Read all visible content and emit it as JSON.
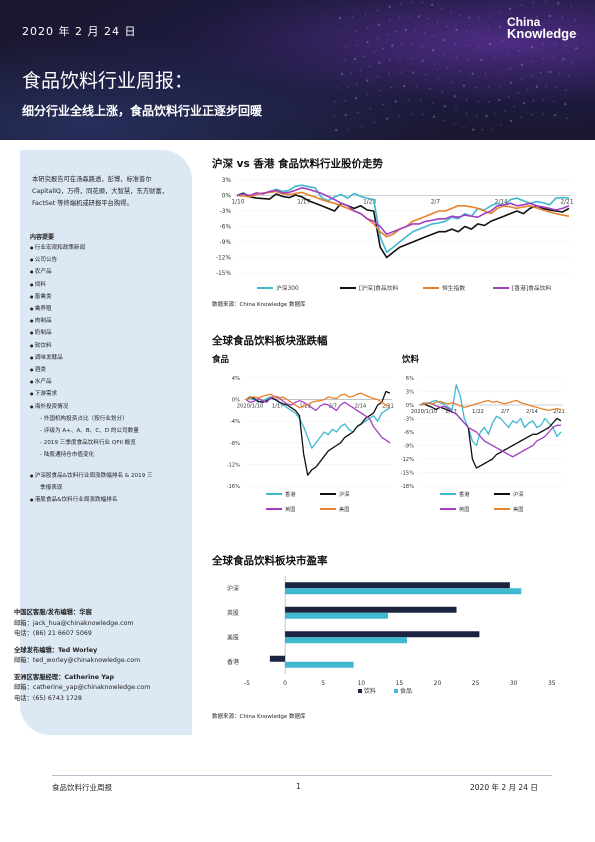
{
  "header": {
    "date": "2020 年 2 月 24 日",
    "title": "食品饮料行业周报：",
    "subtitle": "细分行业全线上涨，食品饮料行业正逐步回暖",
    "logo_line1": "China",
    "logo_line2": "Knowledge"
  },
  "sidebar": {
    "intro": "本研究报告可在汤森路透，彭博，标准普尔 CapitalIQ，万得，同花顺，大智慧，东方财富，FactSet 等终端机或研报平台购得。",
    "contents_title": "内容提要",
    "contents": [
      {
        "type": "bullet",
        "text": "行业宏观和政策新闻"
      },
      {
        "type": "bullet",
        "text": "公司公告"
      },
      {
        "type": "bullet",
        "text": "农产品"
      },
      {
        "type": "bullet",
        "text": "饲料"
      },
      {
        "type": "bullet",
        "text": "畜禽类"
      },
      {
        "type": "bullet",
        "text": "禽养殖"
      },
      {
        "type": "bullet",
        "text": "肉制品"
      },
      {
        "type": "bullet",
        "text": "奶制品"
      },
      {
        "type": "bullet",
        "text": "软饮料"
      },
      {
        "type": "bullet",
        "text": "调味发酵品"
      },
      {
        "type": "bullet",
        "text": "酒类"
      },
      {
        "type": "bullet",
        "text": "水产品"
      },
      {
        "type": "bullet",
        "text": "下游需求"
      },
      {
        "type": "bullet",
        "text": "海外投资情况"
      },
      {
        "type": "sub",
        "text": "外国机构投资占比（按行业划分）"
      },
      {
        "type": "sub",
        "text": "评级为 A+、A、B、C、D 的公司数量"
      },
      {
        "type": "sub",
        "text": "2019 三季度食品饮料行业 QFII 概览"
      },
      {
        "type": "sub",
        "text": "陆股通持仓市值变化"
      },
      {
        "type": "gap",
        "text": ""
      },
      {
        "type": "bullet",
        "text": "沪深股食品&饮料行业周涨跌幅排名 & 2019 三"
      },
      {
        "type": "cont",
        "text": "季报表现"
      },
      {
        "type": "bullet",
        "text": "港股食品&饮料行业周涨跌幅排名"
      }
    ]
  },
  "contacts": [
    {
      "name": "中国区客服/发布编辑：华宸",
      "email": "邮箱：jack_hua@chinaknowledge.com",
      "phone": "电话：(86) 21 6607 5069"
    },
    {
      "name": "全球发布编辑：Ted Worley",
      "email": "邮箱：ted_worley@chinaknowledge.com",
      "phone": ""
    },
    {
      "name": "亚洲区客服经理：Catherine Yap",
      "email": "邮箱：catherine_yap@chinaknowledge.com",
      "phone": "电话：(65) 6743 1728"
    }
  ],
  "sections": {
    "sec1_title": "沪深 vs 香港 食品饮料行业股价走势",
    "sec1_source": "数据来源：China Knowledge 数据库",
    "sec2_title": "全球食品饮料板块涨跌幅",
    "sec2_food": "食品",
    "sec2_drink": "饮料",
    "sec3_title": "全球食品饮料板块市盈率",
    "sec3_source": "数据来源：China Knowledge 数据库"
  },
  "footer": {
    "left": "食品饮料行业周报",
    "center": "1",
    "right": "2020 年 2 月 24 日"
  },
  "colors": {
    "teal": "#3fb8d0",
    "black": "#111111",
    "orange": "#e8822a",
    "purple": "#a23fc2",
    "navy": "#1b2340"
  },
  "chart_data": [
    {
      "id": "price-trend",
      "type": "line",
      "x_ticks": [
        "1/10",
        "1/17",
        "1/23",
        "2/7",
        "2/14",
        "2/21"
      ],
      "y_ticks": [
        "3%",
        "0%",
        "-3%",
        "-6%",
        "-9%",
        "-12%",
        "-15%"
      ],
      "ylim": [
        -15,
        3
      ],
      "series": [
        {
          "name": "沪深300",
          "color": "#3fb8d0",
          "values": [
            0,
            0.5,
            -0.2,
            0.2,
            0.5,
            0.6,
            1.2,
            0.8,
            1.0,
            1.8,
            2.0,
            1.7,
            1.5,
            -0.4,
            -1.0,
            -0.3,
            0.2,
            -0.5,
            0.4,
            -0.2,
            -0.5,
            -0.8,
            -8.0,
            -11.0,
            -10.0,
            -9.0,
            -8.0,
            -7.0,
            -6.5,
            -6.0,
            -5.5,
            -5.3,
            -5.0,
            -4.2,
            -4.5,
            -3.5,
            -4.0,
            -2.5,
            -2.8,
            -2.0,
            -1.5,
            -2.0,
            -0.8,
            -0.5,
            -1.0,
            -1.5,
            -1.2,
            -1.4,
            -1.8,
            -0.5,
            -0.4,
            -0.5
          ]
        },
        {
          "name": "[沪深]食品饮料",
          "color": "#111111",
          "values": [
            0,
            0.4,
            -0.3,
            -0.5,
            -0.6,
            -0.7,
            0.3,
            -0.2,
            -0.4,
            0.1,
            -0.3,
            -1.0,
            -1.5,
            -2.0,
            -2.5,
            -3.0,
            -1.5,
            -2.0,
            -2.5,
            -2.0,
            -2.8,
            -3.0,
            -10.0,
            -12.0,
            -11.0,
            -10.0,
            -9.5,
            -9.0,
            -8.5,
            -8.0,
            -7.5,
            -7.0,
            -7.0,
            -6.5,
            -7.0,
            -6.0,
            -6.5,
            -5.5,
            -5.8,
            -5.0,
            -4.5,
            -4.0,
            -3.5,
            -3.0,
            -3.5,
            -2.5,
            -2.0,
            -2.5,
            -2.8,
            -3.0,
            -3.2,
            -2.5
          ]
        },
        {
          "name": "恒生指数",
          "color": "#e8822a",
          "values": [
            0,
            -0.1,
            -0.3,
            0.2,
            0.5,
            0.6,
            0.8,
            0.3,
            0.2,
            0.4,
            0.6,
            0.1,
            -0.3,
            -0.8,
            -1.2,
            -1.5,
            -2.0,
            -2.5,
            -3.0,
            -3.5,
            -4.5,
            -5.5,
            -7.0,
            -8.0,
            -7.5,
            -6.5,
            -6.0,
            -5.0,
            -4.5,
            -4.0,
            -3.5,
            -3.0,
            -3.0,
            -2.5,
            -2.0,
            -2.0,
            -2.2,
            -2.5,
            -3.0,
            -3.5,
            -2.5,
            -2.0,
            -2.2,
            -2.5,
            -2.2,
            -2.0,
            -2.4,
            -2.8,
            -3.2,
            -3.5,
            -3.8,
            -4.0
          ]
        },
        {
          "name": "[香港]食品饮料",
          "color": "#a23fc2",
          "values": [
            0,
            0.3,
            0.0,
            0.5,
            0.3,
            0.8,
            1.0,
            0.5,
            0.6,
            1.0,
            1.5,
            1.2,
            0.8,
            0.4,
            -0.2,
            -0.8,
            -1.5,
            -2.0,
            -3.0,
            -3.5,
            -4.5,
            -5.0,
            -6.0,
            -7.5,
            -7.0,
            -6.5,
            -6.0,
            -5.5,
            -5.5,
            -5.0,
            -4.8,
            -4.5,
            -4.5,
            -4.0,
            -4.2,
            -3.8,
            -4.0,
            -4.2,
            -3.5,
            -3.0,
            -2.0,
            -1.8,
            -1.5,
            -2.0,
            -1.8,
            -1.5,
            -2.0,
            -2.2,
            -2.5,
            -2.8,
            -2.5,
            -2.0
          ]
        }
      ]
    },
    {
      "id": "food-change",
      "type": "line",
      "x_ticks": [
        "2020/1/10",
        "1/17",
        "1/23",
        "2/7",
        "2/14",
        "2/21"
      ],
      "y_ticks": [
        "4%",
        "0%",
        "-4%",
        "-8%",
        "-12%",
        "-16%"
      ],
      "ylim": [
        -16,
        4
      ],
      "series": [
        {
          "name": "香港",
          "color": "#3fb8d0",
          "values": [
            0,
            0.3,
            0.0,
            -0.5,
            -0.3,
            0.2,
            0.5,
            0.0,
            -0.5,
            -1.0,
            -1.5,
            -2.0,
            -2.5,
            -3.5,
            -5.0,
            -7.0,
            -9.0,
            -8.0,
            -7.0,
            -6.0,
            -6.5,
            -5.5,
            -6.0,
            -5.0,
            -4.5,
            -5.5,
            -6.0,
            -5.0,
            -4.5,
            -4.0,
            -3.5,
            -3.0,
            -4.0,
            -2.5,
            -2.0,
            -1.5
          ]
        },
        {
          "name": "沪深",
          "color": "#111111",
          "values": [
            0,
            0.5,
            0.2,
            -0.3,
            -0.5,
            -0.2,
            0.3,
            0.1,
            -0.4,
            -0.8,
            -1.0,
            -1.5,
            -2.0,
            -3.0,
            -10.0,
            -14.0,
            -13.0,
            -12.5,
            -11.5,
            -10.5,
            -9.5,
            -9.0,
            -8.5,
            -8.0,
            -7.0,
            -6.5,
            -6.0,
            -5.0,
            -4.5,
            -3.5,
            -3.0,
            -2.5,
            -1.0,
            -0.5,
            1.5,
            1.2
          ]
        },
        {
          "name": "英国",
          "color": "#a23fc2",
          "values": [
            0,
            -0.5,
            -0.3,
            0.2,
            -0.2,
            -0.5,
            0.3,
            0.6,
            0.4,
            -0.3,
            -0.8,
            -1.0,
            -0.5,
            -0.2,
            -0.5,
            -1.0,
            -1.5,
            -2.0,
            -1.2,
            -0.8,
            -1.0,
            -1.5,
            -2.0,
            -1.0,
            -0.5,
            -1.0,
            -1.5,
            -2.0,
            -2.5,
            -3.0,
            -3.5,
            -5.0,
            -6.0,
            -7.0,
            -7.5,
            -8.0
          ]
        },
        {
          "name": "美国",
          "color": "#e8822a",
          "values": [
            0,
            0.4,
            0.5,
            0.3,
            0.6,
            0.8,
            1.0,
            0.5,
            0.2,
            0.5,
            0.0,
            -0.5,
            -1.0,
            -1.5,
            -1.2,
            -1.0,
            -0.5,
            -0.3,
            -0.2,
            0.0,
            0.5,
            0.3,
            0.2,
            0.8,
            1.0,
            0.5,
            0.6,
            1.0,
            1.2,
            0.8,
            0.5,
            0.2,
            0.0,
            -0.5,
            -1.0,
            -1.2
          ]
        }
      ]
    },
    {
      "id": "drink-change",
      "type": "line",
      "x_ticks": [
        "2020/1/10",
        "1/17",
        "1/22",
        "2/7",
        "2/14",
        "2/21"
      ],
      "y_ticks": [
        "6%",
        "3%",
        "0%",
        "-3%",
        "-6%",
        "-9%",
        "-12%",
        "-15%",
        "-18%"
      ],
      "ylim": [
        -18,
        6
      ],
      "series": [
        {
          "name": "香港",
          "color": "#3fb8d0",
          "values": [
            0,
            0.5,
            0.3,
            0.8,
            1.0,
            0.5,
            0.2,
            -0.5,
            -1.0,
            4.5,
            2.0,
            -3.0,
            -5.0,
            -8.0,
            -9.0,
            -6.0,
            -5.0,
            -6.5,
            -4.0,
            -2.5,
            -3.0,
            -4.0,
            -5.0,
            -3.5,
            -4.0,
            -3.0,
            -5.0,
            -4.0,
            -3.5,
            -5.0,
            -4.5,
            -3.0,
            -4.0,
            -5.0,
            -7.0,
            -6.0
          ]
        },
        {
          "name": "沪深",
          "color": "#111111",
          "values": [
            0,
            0.3,
            -0.2,
            -0.5,
            -1.0,
            -0.5,
            -0.8,
            -1.2,
            -1.5,
            -2.0,
            -3.0,
            -4.0,
            -5.0,
            -12.0,
            -14.0,
            -13.5,
            -13.0,
            -12.5,
            -12.0,
            -11.0,
            -10.5,
            -10.0,
            -9.5,
            -9.0,
            -8.5,
            -8.0,
            -7.5,
            -7.0,
            -6.5,
            -6.5,
            -6.0,
            -5.5,
            -5.0,
            -4.0,
            -3.0,
            -3.5
          ]
        },
        {
          "name": "英国",
          "color": "#a23fc2",
          "values": [
            0,
            0.2,
            0.5,
            0.3,
            -0.2,
            -0.5,
            -0.3,
            -0.8,
            -1.5,
            -2.0,
            -3.0,
            -4.0,
            -5.0,
            -5.5,
            -6.0,
            -7.0,
            -8.0,
            -8.5,
            -9.0,
            -9.5,
            -10.0,
            -10.5,
            -11.0,
            -11.5,
            -11.0,
            -10.5,
            -10.0,
            -9.5,
            -9.0,
            -8.0,
            -7.5,
            -7.0,
            -6.0,
            -5.0,
            -4.5,
            -4.5
          ]
        },
        {
          "name": "美国",
          "color": "#e8822a",
          "values": [
            0,
            0.3,
            0.5,
            0.2,
            0.6,
            0.8,
            0.5,
            0.3,
            0.5,
            0.2,
            -0.2,
            -0.5,
            -0.3,
            0.0,
            0.3,
            0.5,
            0.8,
            1.0,
            0.6,
            0.8,
            0.5,
            0.3,
            0.5,
            0.8,
            1.0,
            0.5,
            0.3,
            0.0,
            -0.3,
            -0.5,
            -0.8,
            -1.0,
            -1.2,
            -1.0,
            -0.8,
            -1.0
          ]
        }
      ]
    },
    {
      "id": "pe-ratio",
      "type": "bar",
      "orientation": "horizontal",
      "categories": [
        "沪深",
        "英股",
        "美股",
        "香港"
      ],
      "x_ticks": [
        "-5",
        "0",
        "5",
        "10",
        "15",
        "20",
        "25",
        "30",
        "35"
      ],
      "xlim": [
        -5,
        37
      ],
      "series": [
        {
          "name": "饮料",
          "color": "#1b2340",
          "values": [
            29.5,
            22.5,
            25.5,
            -2.0
          ]
        },
        {
          "name": "食品",
          "color": "#3fb8d0",
          "values": [
            31.0,
            13.5,
            16.0,
            9.0
          ]
        }
      ]
    }
  ]
}
